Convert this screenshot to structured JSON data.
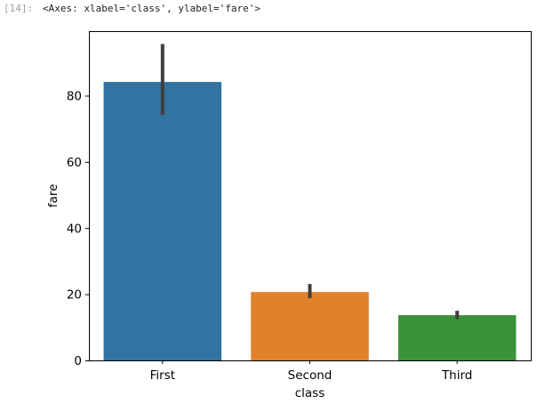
{
  "cell": {
    "prompt": "[14]:",
    "output_text": "<Axes: xlabel='class', ylabel='fare'>"
  },
  "chart_data": {
    "type": "bar",
    "categories": [
      "First",
      "Second",
      "Third"
    ],
    "values": [
      84.15,
      20.66,
      13.68
    ],
    "error_bars": [
      [
        74.2,
        95.6
      ],
      [
        18.8,
        23.1
      ],
      [
        12.5,
        15.0
      ]
    ],
    "colors": [
      "#3274a1",
      "#e1812c",
      "#3a923a"
    ],
    "error_bar_color": "#3f3f3f",
    "xlabel": "class",
    "ylabel": "fare",
    "ylim": [
      0,
      99.5
    ],
    "yticks": [
      0,
      20,
      40,
      60,
      80
    ],
    "grid": false
  }
}
